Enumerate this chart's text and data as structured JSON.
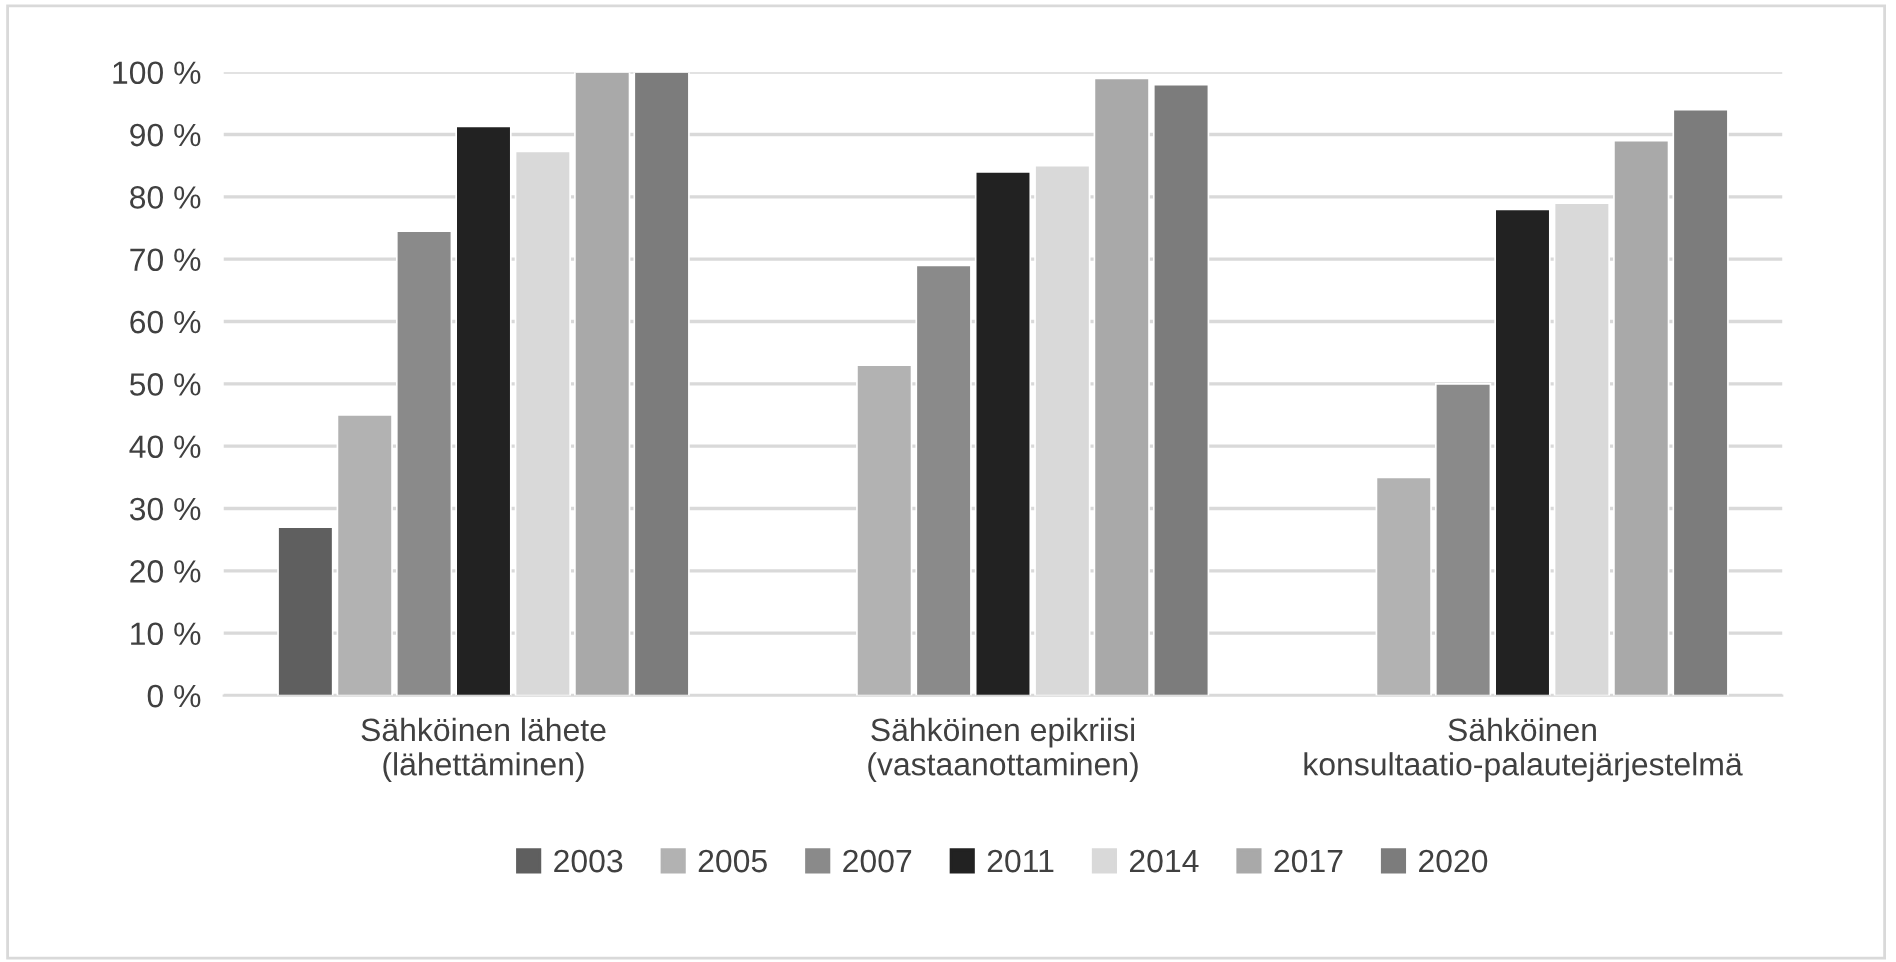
{
  "chart_data": {
    "type": "bar",
    "categories": [
      "Sähköinen lähete\n(lähettäminen)",
      "Sähköinen epikriisi\n(vastaanottaminen)",
      "Sähköinen\nkonsultaatio-palautejärjestelmä"
    ],
    "series": [
      {
        "name": "2003",
        "color": "#5f5f5f",
        "values": [
          27,
          null,
          null
        ]
      },
      {
        "name": "2005",
        "color": "#b2b2b2",
        "values": [
          45,
          53,
          35
        ]
      },
      {
        "name": "2007",
        "color": "#8a8a8a",
        "values": [
          74.5,
          69,
          50
        ]
      },
      {
        "name": "2011",
        "color": "#222222",
        "values": [
          91.3,
          84,
          78
        ]
      },
      {
        "name": "2014",
        "color": "#d9d9d9",
        "values": [
          87.3,
          85,
          79
        ]
      },
      {
        "name": "2017",
        "color": "#a9a9a9",
        "values": [
          100,
          99,
          89
        ]
      },
      {
        "name": "2020",
        "color": "#7c7c7c",
        "values": [
          100,
          98,
          94
        ]
      }
    ],
    "ylim": [
      0,
      100
    ],
    "yticks": [
      {
        "value": 0,
        "label": "0 %"
      },
      {
        "value": 10,
        "label": "10 %"
      },
      {
        "value": 20,
        "label": "20 %"
      },
      {
        "value": 30,
        "label": "30 %"
      },
      {
        "value": 40,
        "label": "40 %"
      },
      {
        "value": 50,
        "label": "50 %"
      },
      {
        "value": 60,
        "label": "60 %"
      },
      {
        "value": 70,
        "label": "70 %"
      },
      {
        "value": 80,
        "label": "80 %"
      },
      {
        "value": 90,
        "label": "90 %"
      },
      {
        "value": 100,
        "label": "100 %"
      }
    ],
    "grid": "y",
    "legend": "bottom"
  }
}
